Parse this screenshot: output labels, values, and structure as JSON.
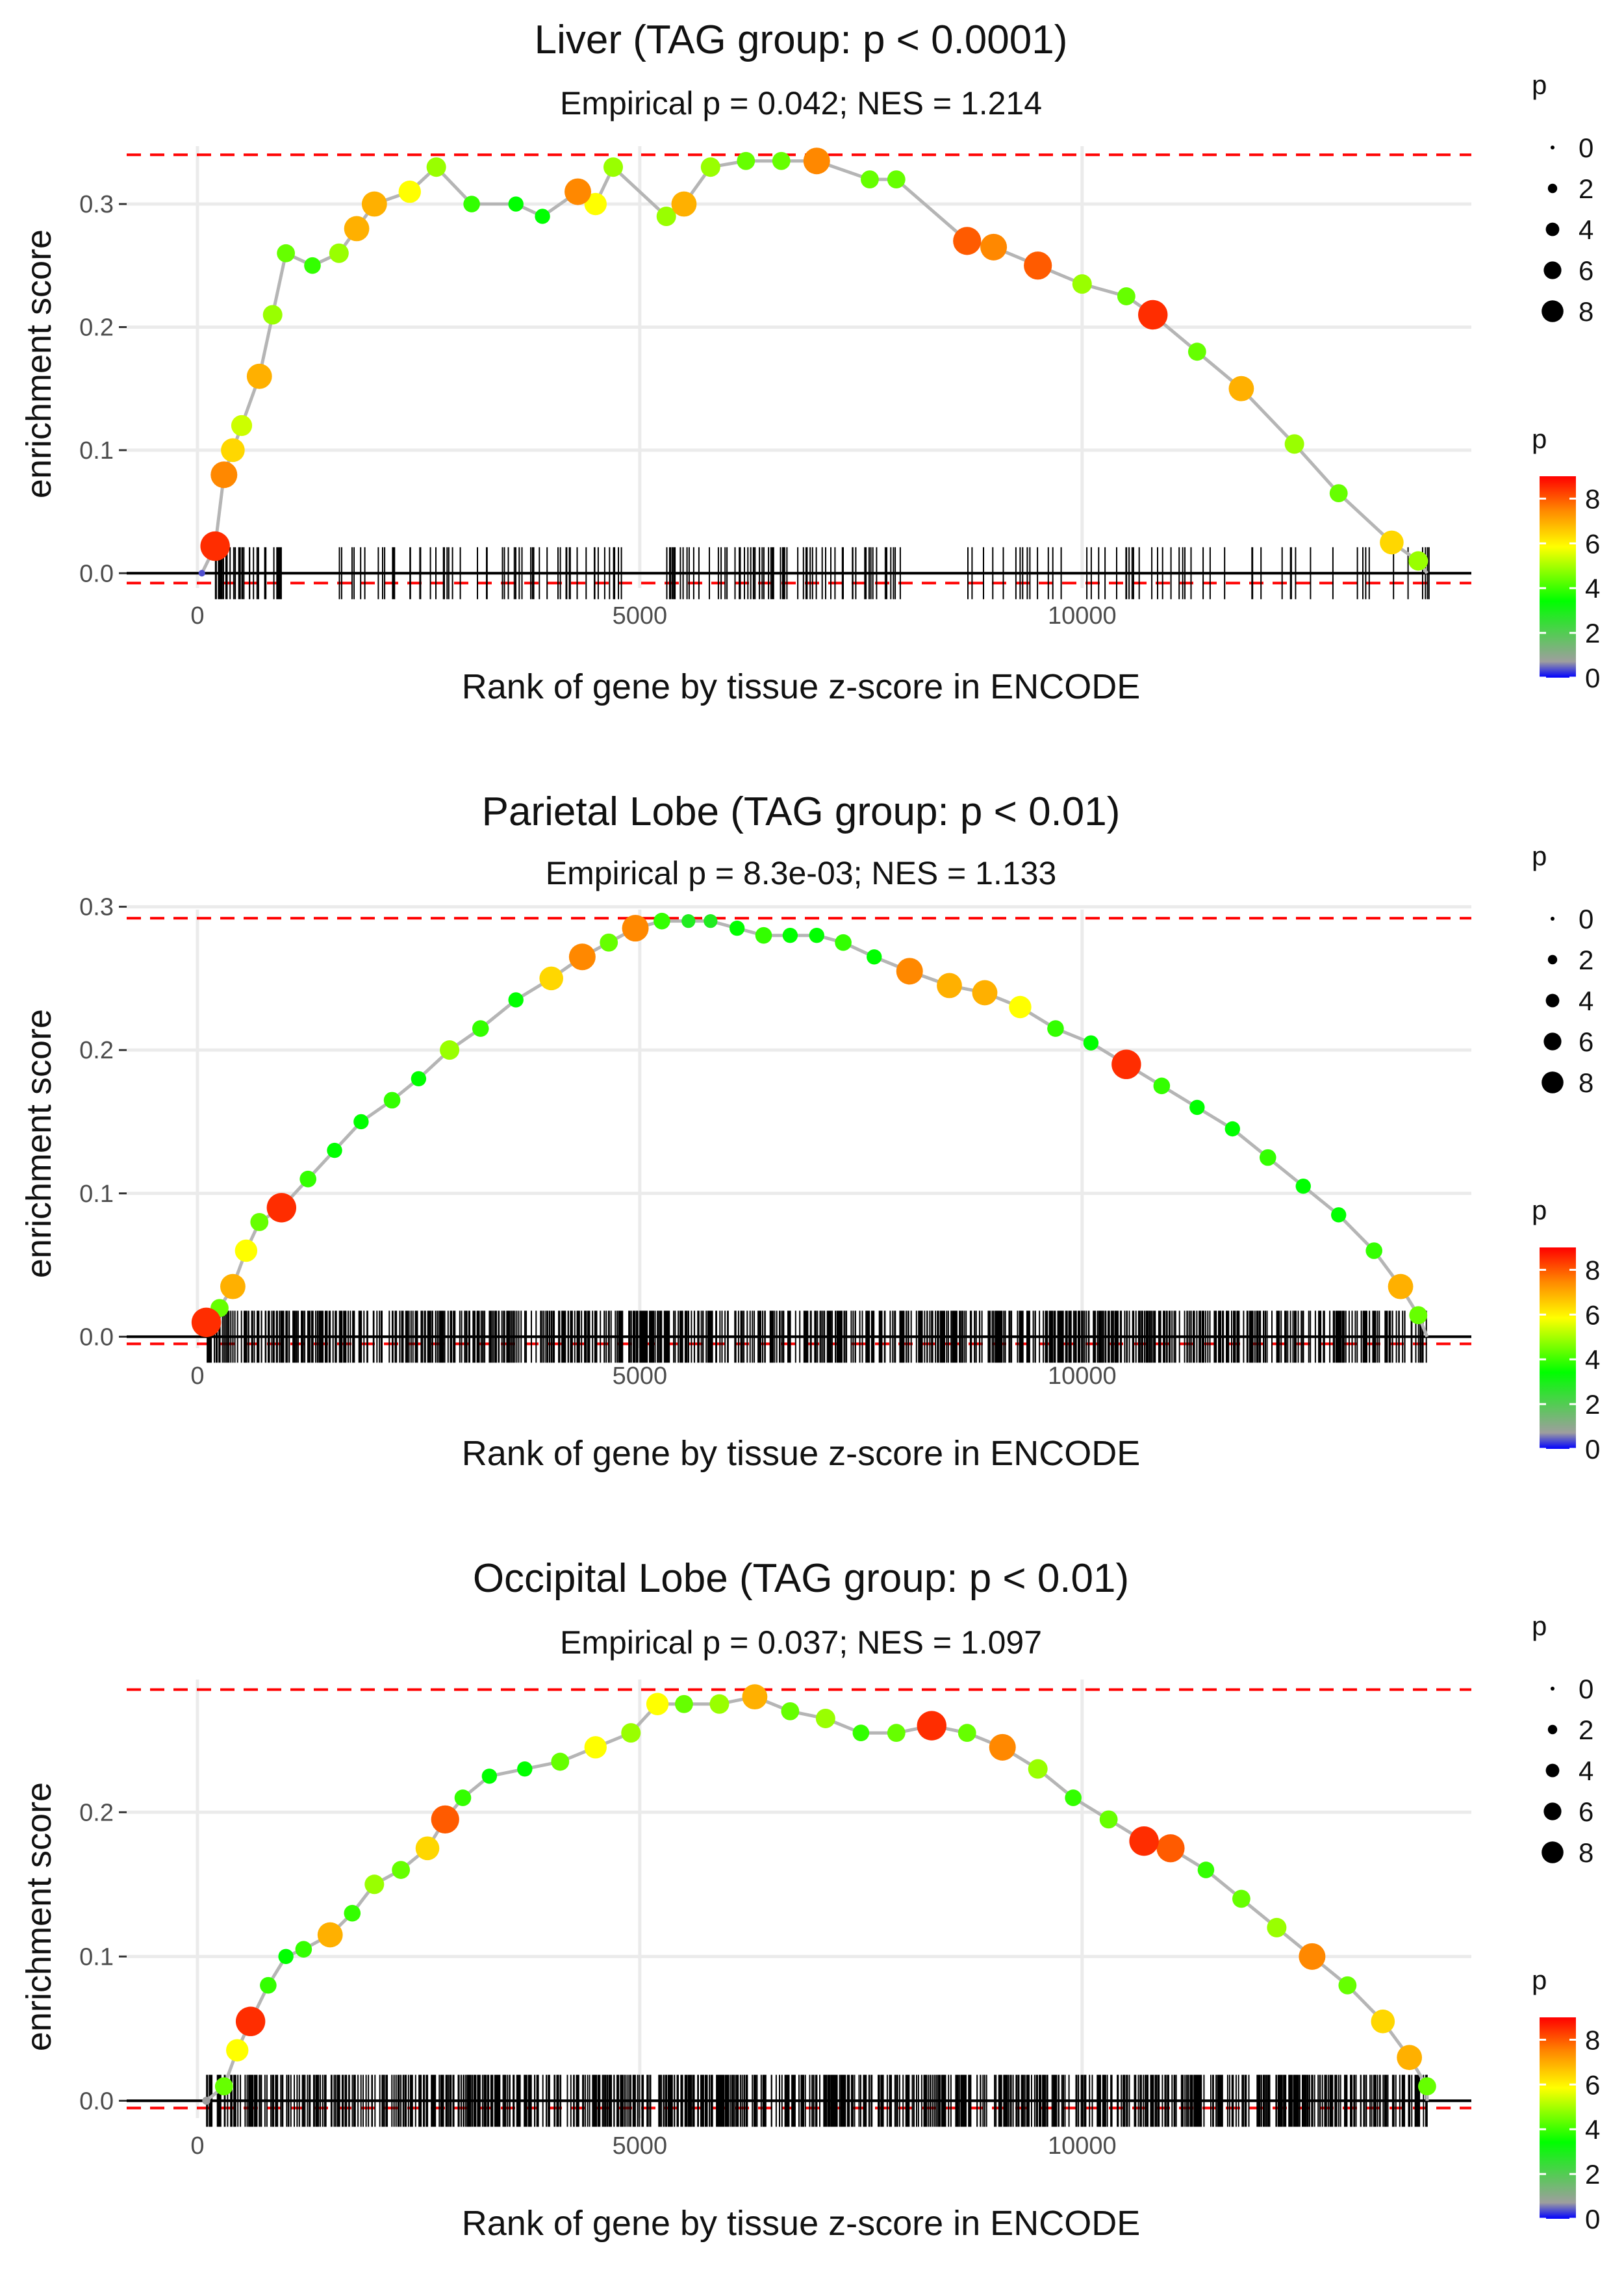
{
  "chart_data": [
    {
      "type": "line",
      "title": "Liver (TAG group: p < 0.0001)",
      "subtitle": "Empirical p = 0.042; NES = 1.214",
      "xlabel": "Rank of gene by tissue z-score in ENCODE",
      "ylabel": "enrichment score",
      "xlim": [
        -800,
        14400
      ],
      "ylim": [
        -0.012,
        0.347
      ],
      "x_ticks": [
        0,
        5000,
        10000
      ],
      "x_tick_labels": [
        "0",
        "5000",
        "10000"
      ],
      "y_ticks": [
        0,
        0.1,
        0.2,
        0.3
      ],
      "y_tick_labels": [
        "0.0",
        "0.1",
        "0.2",
        "0.3"
      ],
      "max_dev_line": 0.34,
      "min_dev_line": -0.008,
      "gene_rug": "dense clusters below the curve near ranks 200-1000, 1500-4800, 5300-8000, 8700-14000",
      "x": [
        50,
        200,
        300,
        400,
        500,
        700,
        850,
        1000,
        1300,
        1600,
        1800,
        2000,
        2400,
        2700,
        3100,
        3600,
        3900,
        4300,
        4500,
        4700,
        5300,
        5500,
        5800,
        6200,
        6600,
        7000,
        7600,
        7900,
        8700,
        9000,
        9500,
        10000,
        10500,
        10800,
        11300,
        11800,
        12400,
        12900,
        13500,
        13800
      ],
      "y": [
        0.0,
        0.022,
        0.08,
        0.1,
        0.12,
        0.16,
        0.21,
        0.26,
        0.25,
        0.26,
        0.28,
        0.3,
        0.31,
        0.33,
        0.3,
        0.3,
        0.29,
        0.31,
        0.3,
        0.33,
        0.29,
        0.3,
        0.33,
        0.335,
        0.335,
        0.335,
        0.32,
        0.32,
        0.27,
        0.265,
        0.25,
        0.235,
        0.225,
        0.21,
        0.18,
        0.15,
        0.105,
        0.065,
        0.025,
        0.01
      ],
      "p": [
        0.5,
        8.5,
        7.5,
        6.5,
        5.5,
        7,
        5,
        4.5,
        4,
        5,
        7,
        7,
        6,
        5,
        4,
        3.5,
        3.5,
        7.5,
        6,
        5,
        5,
        7,
        5,
        4.5,
        4.5,
        7.5,
        4.5,
        4.5,
        8,
        7.5,
        8,
        5,
        4.5,
        8.5,
        4.5,
        7,
        5,
        4.5,
        6.5,
        5
      ]
    },
    {
      "type": "line",
      "title": "Parietal Lobe (TAG group: p < 0.01)",
      "subtitle": "Empirical p = 8.3e-03; NES = 1.133",
      "xlabel": "Rank of gene by tissue z-score in ENCODE",
      "ylabel": "enrichment score",
      "xlim": [
        -800,
        14400
      ],
      "ylim": [
        -0.008,
        0.298
      ],
      "x_ticks": [
        0,
        5000,
        10000
      ],
      "x_tick_labels": [
        "0",
        "5000",
        "10000"
      ],
      "y_ticks": [
        0,
        0.1,
        0.2,
        0.3
      ],
      "y_tick_labels": [
        "0.0",
        "0.1",
        "0.2",
        "0.3"
      ],
      "max_dev_line": 0.292,
      "min_dev_line": -0.005,
      "gene_rug": "very dense rug spanning ranks 100-13900",
      "x": [
        100,
        250,
        400,
        550,
        700,
        950,
        1250,
        1550,
        1850,
        2200,
        2500,
        2850,
        3200,
        3600,
        4000,
        4350,
        4650,
        4950,
        5250,
        5550,
        5800,
        6100,
        6400,
        6700,
        7000,
        7300,
        7650,
        8050,
        8500,
        8900,
        9300,
        9700,
        10100,
        10500,
        10900,
        11300,
        11700,
        12100,
        12500,
        12900,
        13300,
        13600,
        13800
      ],
      "y": [
        0.01,
        0.02,
        0.035,
        0.06,
        0.08,
        0.09,
        0.11,
        0.13,
        0.15,
        0.165,
        0.18,
        0.2,
        0.215,
        0.235,
        0.25,
        0.265,
        0.275,
        0.285,
        0.29,
        0.29,
        0.29,
        0.285,
        0.28,
        0.28,
        0.28,
        0.275,
        0.265,
        0.255,
        0.245,
        0.24,
        0.23,
        0.215,
        0.205,
        0.19,
        0.175,
        0.16,
        0.145,
        0.125,
        0.105,
        0.085,
        0.06,
        0.035,
        0.015
      ],
      "p": [
        8.5,
        4.5,
        7,
        6,
        4.5,
        8.5,
        4,
        3.5,
        3.5,
        4,
        3.5,
        5,
        4,
        3.5,
        6.5,
        7.5,
        4.5,
        7.5,
        4,
        3,
        3,
        3.5,
        4,
        3.5,
        3.5,
        4,
        3.5,
        7.5,
        7,
        7,
        6,
        4,
        3.5,
        8.5,
        4,
        3.5,
        3.5,
        4,
        3.5,
        3.5,
        4,
        7,
        4.5
      ]
    },
    {
      "type": "line",
      "title": "Occipital Lobe (TAG group: p < 0.01)",
      "subtitle": "Empirical p = 0.037; NES = 1.097",
      "xlabel": "Rank of gene by tissue z-score in ENCODE",
      "ylabel": "enrichment score",
      "xlim": [
        -800,
        14400
      ],
      "ylim": [
        -0.012,
        0.292
      ],
      "x_ticks": [
        0,
        5000,
        10000
      ],
      "x_tick_labels": [
        "0",
        "5000",
        "10000"
      ],
      "y_ticks": [
        0,
        0.1,
        0.2
      ],
      "y_tick_labels": [
        "0.0",
        "0.1",
        "0.2"
      ],
      "max_dev_line": 0.285,
      "min_dev_line": -0.005,
      "gene_rug": "very dense rug spanning ranks 100-13900",
      "x": [
        100,
        300,
        450,
        600,
        800,
        1000,
        1200,
        1500,
        1750,
        2000,
        2300,
        2600,
        2800,
        3000,
        3300,
        3700,
        4100,
        4500,
        4900,
        5200,
        5500,
        5900,
        6300,
        6700,
        7100,
        7500,
        7900,
        8300,
        8700,
        9100,
        9500,
        9900,
        10300,
        10700,
        11000,
        11400,
        11800,
        12200,
        12600,
        13000,
        13400,
        13700,
        13900
      ],
      "y": [
        0.0,
        0.01,
        0.035,
        0.055,
        0.08,
        0.1,
        0.105,
        0.115,
        0.13,
        0.15,
        0.16,
        0.175,
        0.195,
        0.21,
        0.225,
        0.23,
        0.235,
        0.245,
        0.255,
        0.275,
        0.275,
        0.275,
        0.28,
        0.27,
        0.265,
        0.255,
        0.255,
        0.26,
        0.255,
        0.245,
        0.23,
        0.21,
        0.195,
        0.18,
        0.175,
        0.16,
        0.14,
        0.12,
        0.1,
        0.08,
        0.055,
        0.03,
        0.01
      ],
      "p": [
        1,
        4.5,
        6,
        8.5,
        4,
        3.5,
        4,
        7,
        4,
        5,
        4.5,
        6.5,
        8,
        4,
        3.5,
        3.5,
        4.5,
        6,
        5,
        6,
        4.5,
        5,
        7,
        4.5,
        5,
        4,
        4.5,
        8.5,
        4.5,
        7.5,
        5,
        4,
        4.5,
        8.5,
        8,
        4,
        4.5,
        5,
        7.5,
        4.5,
        6.5,
        7,
        4.5
      ]
    }
  ],
  "legends": {
    "size_title": "p",
    "size_labels": [
      "0",
      "2",
      "4",
      "6",
      "8"
    ],
    "color_title": "p",
    "color_labels": [
      "0",
      "2",
      "4",
      "6",
      "8"
    ],
    "colors": [
      "#0000ff",
      "#9e9e9e",
      "#00ff00",
      "#ffff00",
      "#ff8800",
      "#ff0000"
    ]
  }
}
